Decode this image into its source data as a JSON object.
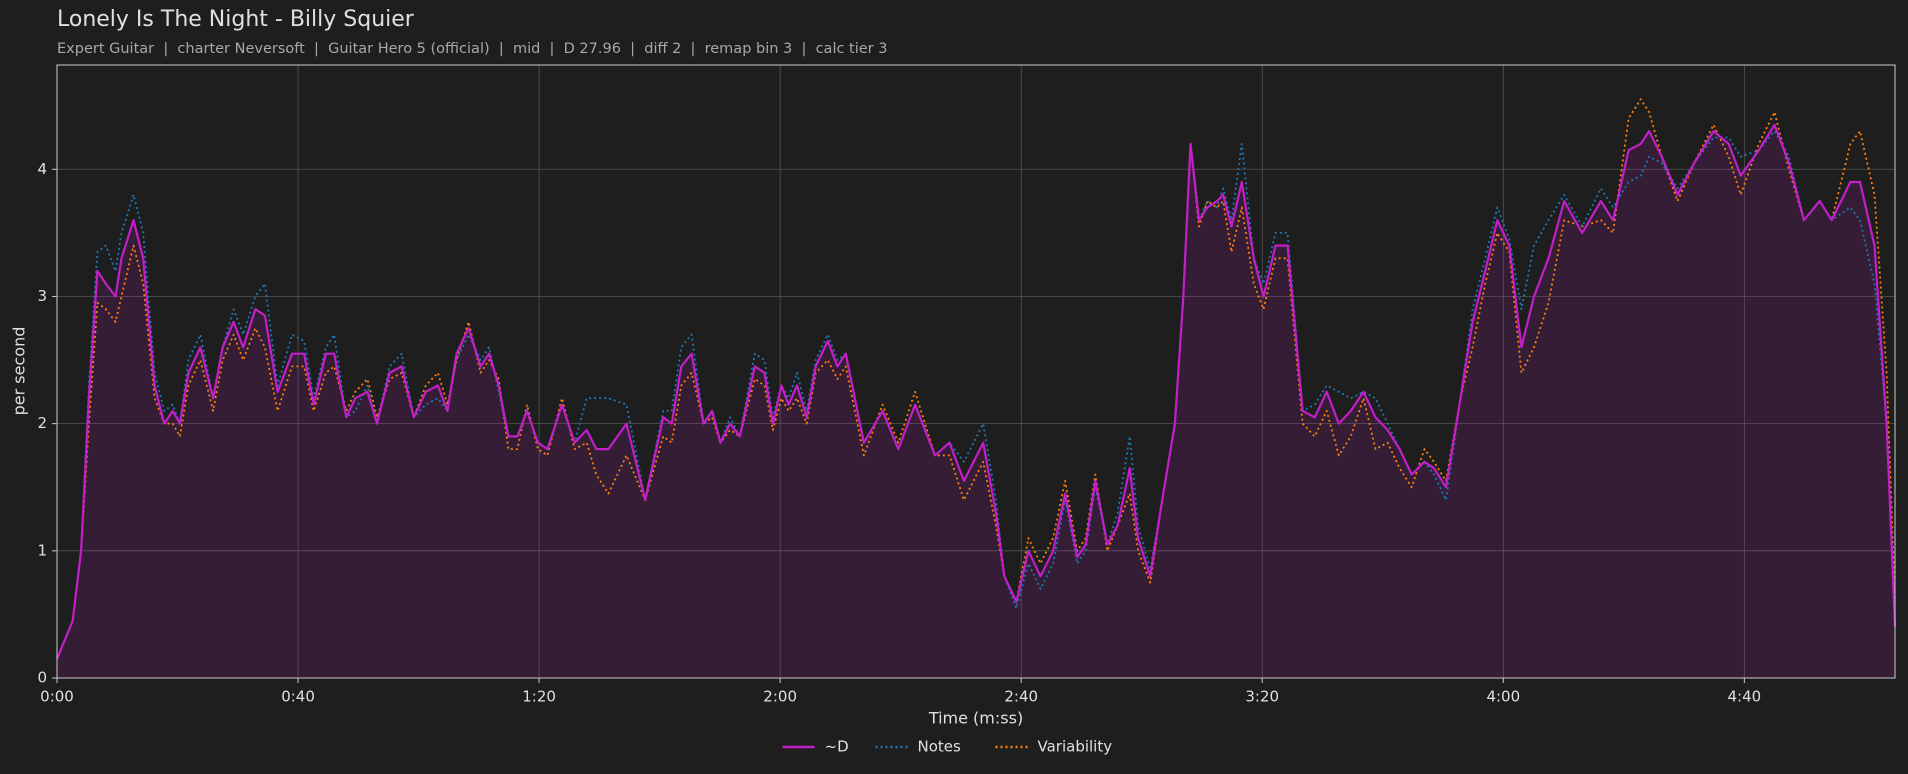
{
  "chart_data": {
    "type": "line",
    "title": "Lonely Is The Night - Billy Squier",
    "subtitle": "Expert Guitar  |  charter Neversoft  |  Guitar Hero 5 (official)  |  mid  |  D 27.96  |  diff 2  |  remap bin 3  |  calc tier 3",
    "x_label": "Time (m:ss)",
    "y_label": "per second",
    "xlim": [
      0,
      305
    ],
    "ylim": [
      0,
      4.82
    ],
    "xticks": [
      {
        "value": 0,
        "label": "0:00"
      },
      {
        "value": 40,
        "label": "0:40"
      },
      {
        "value": 80,
        "label": "1:20"
      },
      {
        "value": 120,
        "label": "2:00"
      },
      {
        "value": 160,
        "label": "2:40"
      },
      {
        "value": 200,
        "label": "3:20"
      },
      {
        "value": 240,
        "label": "4:00"
      },
      {
        "value": 280,
        "label": "4:40"
      }
    ],
    "yticks": [
      0,
      1,
      2,
      3,
      4
    ],
    "grid": true,
    "legend": "bottom",
    "x": [
      0,
      2.6,
      4,
      5.3,
      6.7,
      8.1,
      9.7,
      10.7,
      12.7,
      14.3,
      16.2,
      17.8,
      19.2,
      20.4,
      21.8,
      23.8,
      25.9,
      27.5,
      29.3,
      30.9,
      32.9,
      34.5,
      36.6,
      39,
      41,
      42.6,
      44.6,
      46,
      48,
      49.5,
      51.5,
      53.1,
      55.2,
      57.2,
      59.2,
      61.2,
      63.2,
      64.8,
      66.3,
      68.3,
      70.3,
      71.7,
      73.3,
      74.9,
      76.4,
      78,
      79.8,
      81.4,
      83.8,
      85.9,
      87.9,
      89.5,
      91.5,
      94.5,
      97.6,
      100.6,
      102,
      103.6,
      105.3,
      107.3,
      108.7,
      110.1,
      111.7,
      113.3,
      115.8,
      117.4,
      118.8,
      120.2,
      121.4,
      122.8,
      124.4,
      125.9,
      127.9,
      129.5,
      130.9,
      133.9,
      137,
      139.6,
      142.4,
      145.7,
      148.1,
      150.5,
      153.7,
      155.8,
      157.2,
      159.2,
      161.2,
      163.2,
      165.3,
      167.3,
      169.3,
      170.7,
      172.3,
      174.3,
      176,
      178,
      179.4,
      181.4,
      183.4,
      185.5,
      186.9,
      188.1,
      189.5,
      190.9,
      192.5,
      193.5,
      194.9,
      196.6,
      198.6,
      200.2,
      202.2,
      204.2,
      206.7,
      208.7,
      210.7,
      212.7,
      214.7,
      216.8,
      218.8,
      220.8,
      222.8,
      224.8,
      226.9,
      228.5,
      230.5,
      232.9,
      234.9,
      237,
      239,
      241,
      243,
      245.1,
      247.5,
      250.1,
      253.1,
      256.2,
      258.2,
      260.8,
      262.8,
      264.2,
      266.3,
      268.9,
      271.7,
      274.9,
      277.4,
      279.4,
      282.4,
      285,
      287.4,
      289.9,
      292.5,
      294.5,
      297.6,
      299.2,
      301.6,
      303.6,
      305
    ],
    "series": [
      {
        "name": "~D",
        "color": "#c21fc9",
        "style": "solid",
        "fill": true,
        "values": [
          0.15,
          0.45,
          1.0,
          2.2,
          3.2,
          3.1,
          3.0,
          3.3,
          3.6,
          3.3,
          2.3,
          2.0,
          2.1,
          2.0,
          2.4,
          2.6,
          2.2,
          2.6,
          2.8,
          2.6,
          2.9,
          2.85,
          2.25,
          2.55,
          2.55,
          2.15,
          2.55,
          2.55,
          2.05,
          2.2,
          2.25,
          2.0,
          2.4,
          2.45,
          2.05,
          2.25,
          2.3,
          2.1,
          2.55,
          2.75,
          2.45,
          2.55,
          2.3,
          1.9,
          1.9,
          2.1,
          1.85,
          1.8,
          2.15,
          1.85,
          1.95,
          1.8,
          1.8,
          2.0,
          1.4,
          2.05,
          2.0,
          2.45,
          2.55,
          2.0,
          2.1,
          1.85,
          2.0,
          1.9,
          2.45,
          2.4,
          2.0,
          2.3,
          2.15,
          2.3,
          2.05,
          2.45,
          2.65,
          2.45,
          2.55,
          1.85,
          2.1,
          1.8,
          2.15,
          1.75,
          1.85,
          1.55,
          1.85,
          1.3,
          0.8,
          0.6,
          1.0,
          0.8,
          1.0,
          1.45,
          0.95,
          1.05,
          1.55,
          1.05,
          1.2,
          1.65,
          1.1,
          0.8,
          1.4,
          2.0,
          3.0,
          4.2,
          3.6,
          3.7,
          3.75,
          3.8,
          3.55,
          3.9,
          3.3,
          3.0,
          3.4,
          3.4,
          2.1,
          2.05,
          2.25,
          2.0,
          2.1,
          2.25,
          2.05,
          1.95,
          1.8,
          1.6,
          1.7,
          1.65,
          1.5,
          2.2,
          2.8,
          3.2,
          3.6,
          3.4,
          2.6,
          3.0,
          3.3,
          3.75,
          3.5,
          3.75,
          3.6,
          4.15,
          4.2,
          4.3,
          4.1,
          3.8,
          4.05,
          4.3,
          4.2,
          3.95,
          4.15,
          4.35,
          4.05,
          3.6,
          3.75,
          3.6,
          3.9,
          3.9,
          3.4,
          2.0,
          0.4
        ]
      },
      {
        "name": "Notes",
        "color": "#1f77b4",
        "style": "dotted",
        "values": [
          0.15,
          0.45,
          1.0,
          2.3,
          3.35,
          3.4,
          3.2,
          3.5,
          3.8,
          3.5,
          2.4,
          2.1,
          2.15,
          2.0,
          2.5,
          2.7,
          2.2,
          2.6,
          2.9,
          2.7,
          3.0,
          3.1,
          2.3,
          2.7,
          2.65,
          2.2,
          2.6,
          2.7,
          2.05,
          2.1,
          2.3,
          2.0,
          2.45,
          2.55,
          2.05,
          2.15,
          2.2,
          2.1,
          2.5,
          2.7,
          2.5,
          2.6,
          2.25,
          1.9,
          1.9,
          2.1,
          1.85,
          1.8,
          2.15,
          1.85,
          2.2,
          2.2,
          2.2,
          2.15,
          1.4,
          2.1,
          2.1,
          2.6,
          2.7,
          2.0,
          2.1,
          1.85,
          2.05,
          1.9,
          2.55,
          2.5,
          2.05,
          2.3,
          2.2,
          2.4,
          2.1,
          2.5,
          2.7,
          2.5,
          2.55,
          1.85,
          2.1,
          1.8,
          2.15,
          1.75,
          1.85,
          1.7,
          2.0,
          1.4,
          0.8,
          0.55,
          0.9,
          0.7,
          0.9,
          1.4,
          0.9,
          1.0,
          1.5,
          1.05,
          1.3,
          1.9,
          1.2,
          0.85,
          1.4,
          2.0,
          3.0,
          4.2,
          3.6,
          3.75,
          3.7,
          3.85,
          3.6,
          4.2,
          3.3,
          3.1,
          3.5,
          3.5,
          2.1,
          2.15,
          2.3,
          2.25,
          2.2,
          2.25,
          2.2,
          2.0,
          1.8,
          1.6,
          1.7,
          1.6,
          1.4,
          2.2,
          2.9,
          3.3,
          3.7,
          3.45,
          2.9,
          3.4,
          3.6,
          3.8,
          3.55,
          3.85,
          3.7,
          3.9,
          3.95,
          4.1,
          4.05,
          3.85,
          4.05,
          4.25,
          4.25,
          4.1,
          4.15,
          4.3,
          4.1,
          3.6,
          3.75,
          3.6,
          3.7,
          3.6,
          3.1,
          2.0,
          0.5
        ]
      },
      {
        "name": "Variability",
        "color": "#ff7f0e",
        "style": "dotted",
        "values": [
          0.15,
          0.45,
          1.0,
          2.0,
          2.95,
          2.9,
          2.8,
          3.0,
          3.4,
          3.1,
          2.2,
          2.0,
          2.0,
          1.9,
          2.3,
          2.5,
          2.1,
          2.5,
          2.7,
          2.5,
          2.75,
          2.6,
          2.1,
          2.45,
          2.45,
          2.1,
          2.4,
          2.45,
          2.1,
          2.25,
          2.35,
          2.05,
          2.35,
          2.4,
          2.05,
          2.3,
          2.4,
          2.15,
          2.5,
          2.8,
          2.4,
          2.5,
          2.35,
          1.8,
          1.8,
          2.15,
          1.8,
          1.75,
          2.2,
          1.8,
          1.85,
          1.6,
          1.45,
          1.75,
          1.4,
          1.9,
          1.85,
          2.3,
          2.4,
          2.0,
          2.05,
          1.85,
          1.95,
          1.9,
          2.35,
          2.3,
          1.95,
          2.2,
          2.1,
          2.2,
          2.0,
          2.4,
          2.5,
          2.35,
          2.45,
          1.75,
          2.15,
          1.85,
          2.25,
          1.75,
          1.75,
          1.4,
          1.7,
          1.2,
          0.8,
          0.6,
          1.1,
          0.9,
          1.1,
          1.55,
          1.0,
          1.1,
          1.6,
          1.0,
          1.2,
          1.45,
          1.0,
          0.75,
          1.4,
          2.0,
          3.0,
          4.2,
          3.55,
          3.75,
          3.7,
          3.75,
          3.35,
          3.7,
          3.1,
          2.9,
          3.3,
          3.3,
          2.0,
          1.9,
          2.1,
          1.75,
          1.9,
          2.2,
          1.8,
          1.85,
          1.65,
          1.5,
          1.8,
          1.7,
          1.55,
          2.2,
          2.6,
          3.1,
          3.5,
          3.35,
          2.4,
          2.6,
          2.95,
          3.6,
          3.55,
          3.6,
          3.5,
          4.4,
          4.55,
          4.45,
          4.1,
          3.75,
          4.05,
          4.35,
          4.1,
          3.8,
          4.2,
          4.45,
          4.0,
          3.6,
          3.75,
          3.6,
          4.2,
          4.3,
          3.8,
          2.4,
          0.6
        ]
      }
    ]
  }
}
